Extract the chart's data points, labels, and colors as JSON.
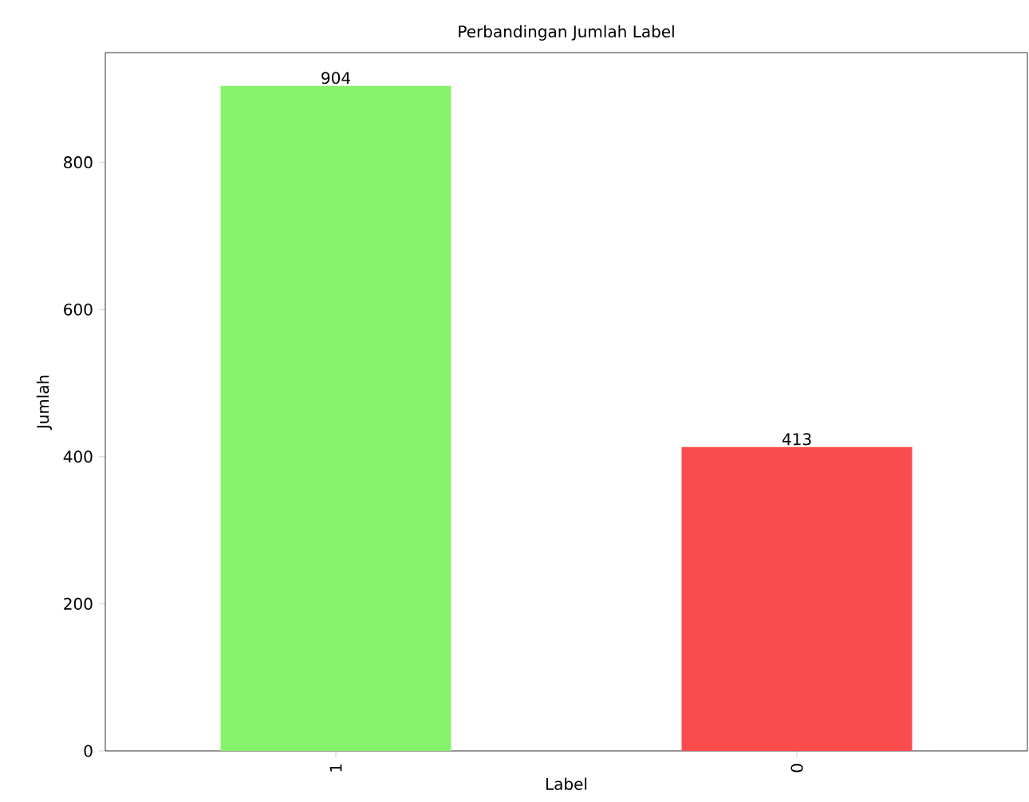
{
  "chart_data": {
    "type": "bar",
    "title": "Perbandingan Jumlah Label",
    "xlabel": "Label",
    "ylabel": "Jumlah",
    "categories": [
      "1",
      "0"
    ],
    "values": [
      904,
      413
    ],
    "colors": [
      "#86f26b",
      "#fa4c4c"
    ],
    "ylim": [
      0,
      949.2
    ],
    "yticks": [
      0,
      200,
      400,
      600,
      800
    ],
    "data_labels": true
  }
}
